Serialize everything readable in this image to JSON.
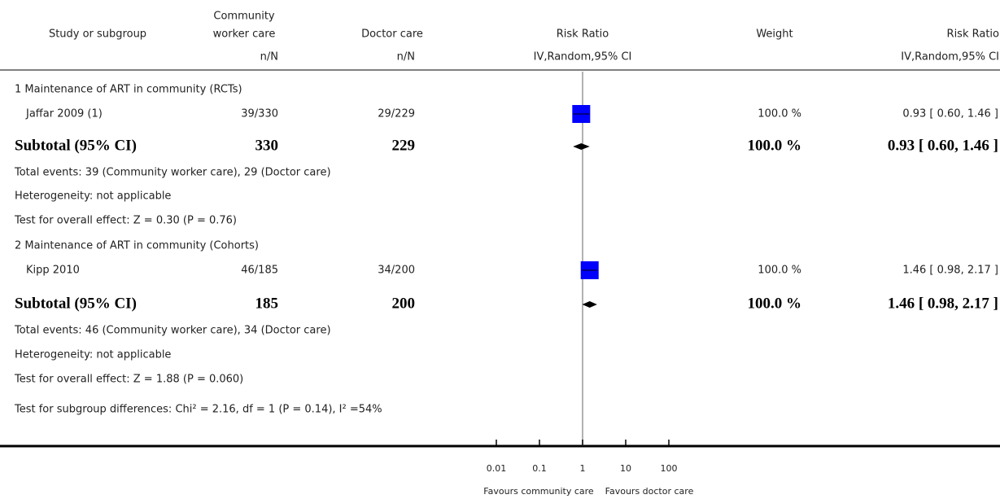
{
  "chart_data": {
    "type": "forest",
    "columns": {
      "study": "Study or subgroup",
      "experimental": [
        "Community",
        "worker care"
      ],
      "control": "Doctor care",
      "plot": "Risk Ratio",
      "weight": "Weight",
      "effect": "Risk Ratio"
    },
    "subheaders": {
      "experimental": "n/N",
      "control": "n/N",
      "plot": "IV,Random,95% CI",
      "effect": "IV,Random,95% CI"
    },
    "rows": [
      {
        "kind": "heading",
        "text": "1 Maintenance of ART in community (RCTs)"
      },
      {
        "kind": "study",
        "name": "Jaffar 2009 (1)",
        "experimental": "39/330",
        "control": "29/229",
        "weight": "100.0 %",
        "estimate": 0.93,
        "lower": 0.6,
        "upper": 1.46,
        "ci_label": "0.93 [ 0.60, 1.46 ]"
      },
      {
        "kind": "subtotal",
        "name": "Subtotal (95% CI)",
        "experimental": "330",
        "control": "229",
        "weight": "100.0 %",
        "estimate": 0.93,
        "lower": 0.6,
        "upper": 1.46,
        "ci_label": "0.93 [ 0.60, 1.46 ]"
      },
      {
        "kind": "text",
        "text": "Total events: 39 (Community worker care), 29 (Doctor care)"
      },
      {
        "kind": "text",
        "text": "Heterogeneity: not applicable"
      },
      {
        "kind": "text",
        "text": "Test for overall effect: Z = 0.30 (P = 0.76)"
      },
      {
        "kind": "heading",
        "text": "2 Maintenance of ART in community (Cohorts)"
      },
      {
        "kind": "study",
        "name": "Kipp 2010",
        "experimental": "46/185",
        "control": "34/200",
        "weight": "100.0 %",
        "estimate": 1.46,
        "lower": 0.98,
        "upper": 2.17,
        "ci_label": "1.46 [ 0.98, 2.17 ]"
      },
      {
        "kind": "subtotal",
        "name": "Subtotal (95% CI)",
        "experimental": "185",
        "control": "200",
        "weight": "100.0 %",
        "estimate": 1.46,
        "lower": 0.98,
        "upper": 2.17,
        "ci_label": "1.46 [ 0.98, 2.17 ]"
      },
      {
        "kind": "text",
        "text": "Total events: 46 (Community worker care), 34 (Doctor care)"
      },
      {
        "kind": "text",
        "text": "Heterogeneity: not applicable"
      },
      {
        "kind": "text",
        "text": "Test for overall effect: Z = 1.88 (P = 0.060)"
      },
      {
        "kind": "text",
        "text": "Test for subgroup differences: Chi² = 2.16, df = 1 (P = 0.14), I² =54%"
      }
    ],
    "xscale": "log",
    "xlim": [
      0.01,
      100
    ],
    "xticks": [
      0.01,
      0.1,
      1,
      10,
      100
    ],
    "reference_line": 1,
    "xlabel_left": "Favours community care",
    "xlabel_right": "Favours doctor care",
    "color": "#0000ff"
  }
}
